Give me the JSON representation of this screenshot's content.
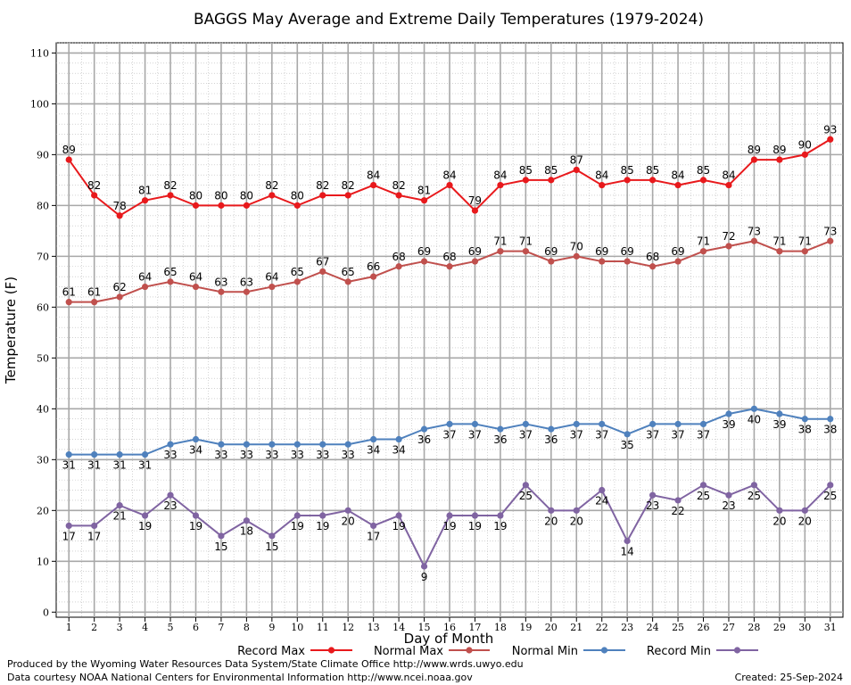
{
  "chart_data": {
    "type": "line",
    "title": "BAGGS May Average and Extreme Daily Temperatures (1979-2024)",
    "xlabel": "Day of Month",
    "ylabel": "Temperature (F)",
    "x": [
      1,
      2,
      3,
      4,
      5,
      6,
      7,
      8,
      9,
      10,
      11,
      12,
      13,
      14,
      15,
      16,
      17,
      18,
      19,
      20,
      21,
      22,
      23,
      24,
      25,
      26,
      27,
      28,
      29,
      30,
      31
    ],
    "xlim": [
      0.5,
      31.5
    ],
    "ylim": [
      -1,
      112
    ],
    "yticks": [
      0,
      10,
      20,
      30,
      40,
      50,
      60,
      70,
      80,
      90,
      100,
      110
    ],
    "grid": true,
    "legend_position": "bottom",
    "series": [
      {
        "name": "Record Max",
        "color": "#e8191c",
        "label_pos": "above",
        "values": [
          89,
          82,
          78,
          81,
          82,
          80,
          80,
          80,
          82,
          80,
          82,
          82,
          84,
          82,
          81,
          84,
          79,
          84,
          85,
          85,
          87,
          84,
          85,
          85,
          84,
          85,
          84,
          89,
          89,
          90,
          93
        ]
      },
      {
        "name": "Normal Max",
        "color": "#c0504d",
        "label_pos": "above",
        "values": [
          61,
          61,
          62,
          64,
          65,
          64,
          63,
          63,
          64,
          65,
          67,
          65,
          66,
          68,
          69,
          68,
          69,
          71,
          71,
          69,
          70,
          69,
          69,
          68,
          69,
          71,
          72,
          73,
          71,
          71,
          73
        ]
      },
      {
        "name": "Normal Min",
        "color": "#4f81bd",
        "label_pos": "below",
        "values": [
          31,
          31,
          31,
          31,
          33,
          34,
          33,
          33,
          33,
          33,
          33,
          33,
          34,
          34,
          36,
          37,
          37,
          36,
          37,
          36,
          37,
          37,
          35,
          37,
          37,
          37,
          39,
          40,
          39,
          38,
          38
        ]
      },
      {
        "name": "Record Min",
        "color": "#8064a2",
        "label_pos": "below",
        "values": [
          17,
          17,
          21,
          19,
          23,
          19,
          15,
          18,
          15,
          19,
          19,
          20,
          17,
          19,
          9,
          19,
          19,
          19,
          25,
          20,
          20,
          24,
          14,
          23,
          22,
          25,
          23,
          25,
          20,
          20,
          25
        ]
      }
    ]
  },
  "footer": {
    "line1": "Produced by the Wyoming Water Resources Data System/State Climate Office http://www.wrds.uwyo.edu",
    "line2": "Data courtesy NOAA National Centers for Environmental Information http://www.ncei.noaa.gov",
    "created": "Created:  25-Sep-2024"
  }
}
